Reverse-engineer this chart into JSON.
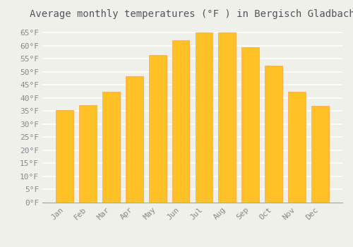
{
  "title": "Average monthly temperatures (°F ) in Bergisch Gladbach",
  "months": [
    "Jan",
    "Feb",
    "Mar",
    "Apr",
    "May",
    "Jun",
    "Jul",
    "Aug",
    "Sep",
    "Oct",
    "Nov",
    "Dec"
  ],
  "values": [
    35.4,
    37.2,
    42.3,
    48.4,
    56.5,
    62.1,
    65.1,
    64.9,
    59.5,
    52.3,
    42.3,
    37.0
  ],
  "bar_color": "#FFC125",
  "bar_edge_color": "#FFA040",
  "background_color": "#f0f0eb",
  "grid_color": "#ffffff",
  "yticks": [
    0,
    5,
    10,
    15,
    20,
    25,
    30,
    35,
    40,
    45,
    50,
    55,
    60,
    65
  ],
  "ylim": [
    0,
    68
  ],
  "title_fontsize": 10,
  "tick_fontsize": 8,
  "title_color": "#555555",
  "tick_color": "#888888",
  "spine_color": "#aaaaaa"
}
